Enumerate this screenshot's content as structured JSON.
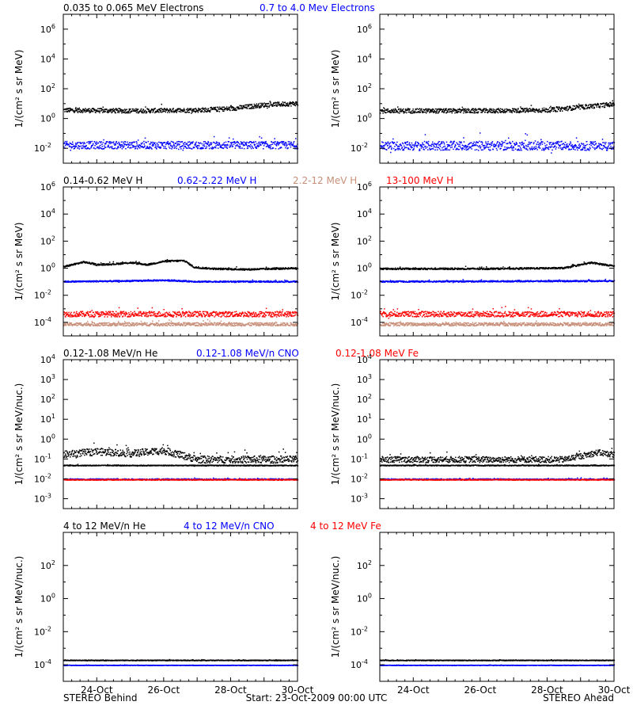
{
  "footer": {
    "left": "STEREO Behind",
    "center": "Start: 23-Oct-2009 00:00 UTC",
    "right": "STEREO Ahead"
  },
  "colors": {
    "black": "#000000",
    "blue": "#0000ff",
    "tan": "#c8907a",
    "red": "#ff0000"
  },
  "chart_data": [
    {
      "type": "scatter",
      "id": "electrons",
      "legend": [
        {
          "text": "0.035 to 0.065 MeV Electrons",
          "color": "black"
        },
        {
          "text": "0.7 to 4.0 Mev Electrons",
          "color": "blue"
        }
      ],
      "ylabel": "1/(cm² s sr MeV)",
      "yscale": "log",
      "ylim_exp": [
        -3,
        7
      ],
      "ytick_exps": [
        -2,
        0,
        2,
        4,
        6
      ],
      "x_days": [
        0,
        7
      ],
      "xticks": [
        "24-Oct",
        "26-Oct",
        "28-Oct",
        "30-Oct"
      ],
      "panels": [
        {
          "name": "STEREO Behind",
          "series": [
            {
              "color": "black",
              "log_levels": [
                [
                  0,
                  0.6
                ],
                [
                  2,
                  0.55
                ],
                [
                  4,
                  0.6
                ],
                [
                  5,
                  0.7
                ],
                [
                  6,
                  0.95
                ],
                [
                  7,
                  1.05
                ]
              ],
              "jitter": 0.15
            },
            {
              "color": "blue",
              "log_levels": [
                [
                  0,
                  -1.75
                ],
                [
                  7,
                  -1.75
                ]
              ],
              "jitter": 0.25
            }
          ]
        },
        {
          "name": "STEREO Ahead",
          "series": [
            {
              "color": "black",
              "log_levels": [
                [
                  0,
                  0.55
                ],
                [
                  3,
                  0.55
                ],
                [
                  5,
                  0.6
                ],
                [
                  6,
                  0.8
                ],
                [
                  7,
                  1.0
                ]
              ],
              "jitter": 0.15
            },
            {
              "color": "blue",
              "log_levels": [
                [
                  0,
                  -1.8
                ],
                [
                  7,
                  -1.8
                ]
              ],
              "jitter": 0.3
            }
          ]
        }
      ]
    },
    {
      "type": "scatter",
      "id": "protons",
      "legend": [
        {
          "text": "0.14-0.62 MeV H",
          "color": "black"
        },
        {
          "text": "0.62-2.22 MeV H",
          "color": "blue"
        },
        {
          "text": "2.2-12 MeV H",
          "color": "tan"
        },
        {
          "text": "13-100 MeV H",
          "color": "red"
        }
      ],
      "ylabel": "1/(cm² s sr MeV)",
      "yscale": "log",
      "ylim_exp": [
        -5,
        6
      ],
      "ytick_exps": [
        -4,
        -2,
        0,
        2,
        4,
        6
      ],
      "x_days": [
        0,
        7
      ],
      "xticks": [
        "24-Oct",
        "26-Oct",
        "28-Oct",
        "30-Oct"
      ],
      "panels": [
        {
          "name": "STEREO Behind",
          "series": [
            {
              "color": "black",
              "log_levels": [
                [
                  0,
                  0.15
                ],
                [
                  0.6,
                  0.5
                ],
                [
                  1,
                  0.3
                ],
                [
                  1.5,
                  0.35
                ],
                [
                  2,
                  0.45
                ],
                [
                  2.5,
                  0.3
                ],
                [
                  3,
                  0.55
                ],
                [
                  3.6,
                  0.6
                ],
                [
                  3.9,
                  0.1
                ],
                [
                  4.5,
                  0.0
                ],
                [
                  5.5,
                  -0.05
                ],
                [
                  7,
                  0.05
                ]
              ],
              "jitter": 0.06
            },
            {
              "color": "blue",
              "log_levels": [
                [
                  0,
                  -0.95
                ],
                [
                  2,
                  -0.9
                ],
                [
                  3,
                  -0.85
                ],
                [
                  4,
                  -0.95
                ],
                [
                  7,
                  -0.95
                ]
              ],
              "jitter": 0.05
            },
            {
              "color": "tan",
              "log_levels": [
                [
                  0,
                  -4.1
                ],
                [
                  7,
                  -4.1
                ]
              ],
              "jitter": 0.12
            },
            {
              "color": "red",
              "log_levels": [
                [
                  0,
                  -3.35
                ],
                [
                  7,
                  -3.35
                ]
              ],
              "jitter": 0.2
            }
          ]
        },
        {
          "name": "STEREO Ahead",
          "series": [
            {
              "color": "black",
              "log_levels": [
                [
                  0,
                  0.0
                ],
                [
                  3,
                  0.0
                ],
                [
                  5.5,
                  0.05
                ],
                [
                  6.3,
                  0.45
                ],
                [
                  7,
                  0.2
                ]
              ],
              "jitter": 0.06
            },
            {
              "color": "blue",
              "log_levels": [
                [
                  0,
                  -0.95
                ],
                [
                  7,
                  -0.9
                ]
              ],
              "jitter": 0.05
            },
            {
              "color": "tan",
              "log_levels": [
                [
                  0,
                  -4.1
                ],
                [
                  7,
                  -4.1
                ]
              ],
              "jitter": 0.12
            },
            {
              "color": "red",
              "log_levels": [
                [
                  0,
                  -3.35
                ],
                [
                  7,
                  -3.35
                ]
              ],
              "jitter": 0.2
            }
          ]
        }
      ]
    },
    {
      "type": "scatter",
      "id": "low-energy-ions",
      "legend": [
        {
          "text": "0.12-1.08 MeV/n He",
          "color": "black"
        },
        {
          "text": "0.12-1.08 MeV/n CNO",
          "color": "blue"
        },
        {
          "text": "0.12-1.08 MeV Fe",
          "color": "red"
        }
      ],
      "ylabel": "1/(cm² s sr MeV/nuc.)",
      "yscale": "log",
      "ylim_exp": [
        -3.5,
        4
      ],
      "ytick_exps": [
        -3,
        -2,
        -1,
        0,
        1,
        2,
        3,
        4
      ],
      "x_days": [
        0,
        7
      ],
      "xticks": [
        "24-Oct",
        "26-Oct",
        "28-Oct",
        "30-Oct"
      ],
      "panels": [
        {
          "name": "STEREO Behind",
          "series": [
            {
              "color": "black",
              "log_levels": [
                [
                  0,
                  -1.3
                ],
                [
                  7,
                  -1.3
                ]
              ],
              "jitter": 0.02
            },
            {
              "color": "black",
              "log_levels": [
                [
                  0,
                  -0.75
                ],
                [
                  1,
                  -0.6
                ],
                [
                  2,
                  -0.7
                ],
                [
                  3,
                  -0.55
                ],
                [
                  4,
                  -1.0
                ],
                [
                  7,
                  -1.0
                ]
              ],
              "jitter": 0.18
            },
            {
              "color": "blue",
              "log_levels": [
                [
                  0,
                  -2.0
                ],
                [
                  7,
                  -2.0
                ]
              ],
              "jitter": 0.03
            },
            {
              "color": "red",
              "log_levels": [
                [
                  0,
                  -2.02
                ],
                [
                  7,
                  -2.02
                ]
              ],
              "jitter": 0.02
            }
          ]
        },
        {
          "name": "STEREO Ahead",
          "series": [
            {
              "color": "black",
              "log_levels": [
                [
                  0,
                  -1.3
                ],
                [
                  7,
                  -1.3
                ]
              ],
              "jitter": 0.02
            },
            {
              "color": "black",
              "log_levels": [
                [
                  0,
                  -1.0
                ],
                [
                  5.5,
                  -1.0
                ],
                [
                  6.5,
                  -0.65
                ],
                [
                  7,
                  -0.75
                ]
              ],
              "jitter": 0.15
            },
            {
              "color": "blue",
              "log_levels": [
                [
                  0,
                  -2.0
                ],
                [
                  7,
                  -2.0
                ]
              ],
              "jitter": 0.03
            },
            {
              "color": "red",
              "log_levels": [
                [
                  0,
                  -2.02
                ],
                [
                  7,
                  -2.02
                ]
              ],
              "jitter": 0.02
            }
          ]
        }
      ]
    },
    {
      "type": "scatter",
      "id": "high-energy-ions",
      "legend": [
        {
          "text": "4 to 12 MeV/n He",
          "color": "black"
        },
        {
          "text": "4 to 12 MeV/n CNO",
          "color": "blue"
        },
        {
          "text": "4 to 12 MeV Fe",
          "color": "red"
        }
      ],
      "ylabel": "1/(cm² s sr MeV/nuc.)",
      "yscale": "log",
      "ylim_exp": [
        -5,
        4
      ],
      "ytick_exps": [
        -4,
        -2,
        0,
        2
      ],
      "x_days": [
        0,
        7
      ],
      "xticks": [
        "24-Oct",
        "26-Oct",
        "28-Oct",
        "30-Oct"
      ],
      "panels": [
        {
          "name": "STEREO Behind",
          "series": [
            {
              "color": "black",
              "log_levels": [
                [
                  0,
                  -3.7
                ],
                [
                  7,
                  -3.7
                ]
              ],
              "jitter": 0.02
            },
            {
              "color": "blue",
              "log_levels": [
                [
                  0,
                  -4.0
                ],
                [
                  7,
                  -4.0
                ]
              ],
              "jitter": 0.01
            }
          ]
        },
        {
          "name": "STEREO Ahead",
          "series": [
            {
              "color": "black",
              "log_levels": [
                [
                  0,
                  -3.7
                ],
                [
                  7,
                  -3.7
                ]
              ],
              "jitter": 0.02
            },
            {
              "color": "blue",
              "log_levels": [
                [
                  0,
                  -4.0
                ],
                [
                  7,
                  -4.0
                ]
              ],
              "jitter": 0.01
            }
          ]
        }
      ]
    }
  ]
}
